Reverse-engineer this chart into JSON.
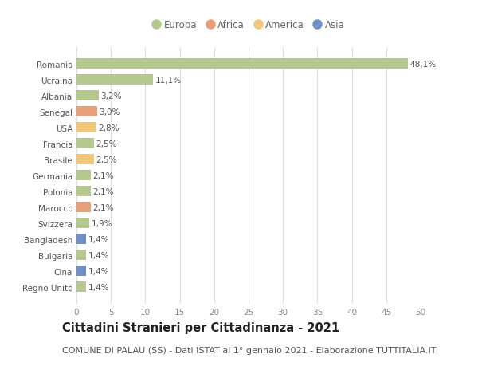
{
  "categories": [
    "Romania",
    "Ucraina",
    "Albania",
    "Senegal",
    "USA",
    "Francia",
    "Brasile",
    "Germania",
    "Polonia",
    "Marocco",
    "Svizzera",
    "Bangladesh",
    "Bulgaria",
    "Cina",
    "Regno Unito"
  ],
  "values": [
    48.1,
    11.1,
    3.2,
    3.0,
    2.8,
    2.5,
    2.5,
    2.1,
    2.1,
    2.1,
    1.9,
    1.4,
    1.4,
    1.4,
    1.4
  ],
  "labels": [
    "48,1%",
    "11,1%",
    "3,2%",
    "3,0%",
    "2,8%",
    "2,5%",
    "2,5%",
    "2,1%",
    "2,1%",
    "2,1%",
    "1,9%",
    "1,4%",
    "1,4%",
    "1,4%",
    "1,4%"
  ],
  "colors": [
    "#b5c98e",
    "#b5c98e",
    "#b5c98e",
    "#e8a07a",
    "#f0c878",
    "#b5c98e",
    "#f0c878",
    "#b5c98e",
    "#b5c98e",
    "#e8a07a",
    "#b5c98e",
    "#7090c8",
    "#b5c98e",
    "#7090c8",
    "#b5c98e"
  ],
  "legend_labels": [
    "Europa",
    "Africa",
    "America",
    "Asia"
  ],
  "legend_colors": [
    "#b5c98e",
    "#e8a07a",
    "#f0c878",
    "#7090c8"
  ],
  "title": "Cittadini Stranieri per Cittadinanza - 2021",
  "subtitle": "COMUNE DI PALAU (SS) - Dati ISTAT al 1° gennaio 2021 - Elaborazione TUTTITALIA.IT",
  "xlim": [
    0,
    50
  ],
  "xticks": [
    0,
    5,
    10,
    15,
    20,
    25,
    30,
    35,
    40,
    45,
    50
  ],
  "background_color": "#ffffff",
  "grid_color": "#e0e0e0",
  "bar_height": 0.65,
  "title_fontsize": 10.5,
  "subtitle_fontsize": 8,
  "label_fontsize": 7.5,
  "tick_fontsize": 7.5,
  "legend_fontsize": 8.5
}
